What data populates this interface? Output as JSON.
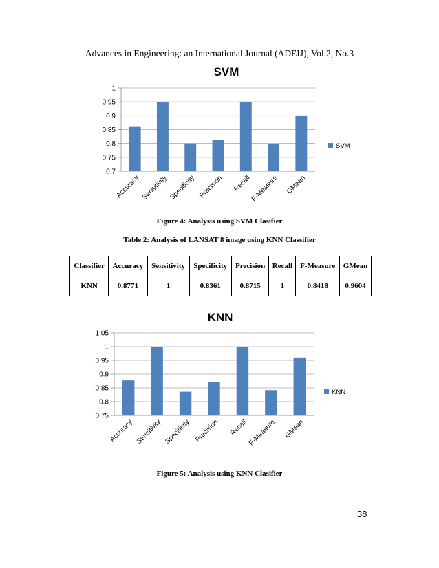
{
  "header": "Advances in Engineering: an International Journal (ADEIJ), Vol.2, No.3",
  "figure4_caption": "Figure 4: Analysis using SVM Clasifier",
  "table_caption": "Table 2: Analysis of LANSAT 8 image using KNN Classifier",
  "table": {
    "headers": [
      "Classifier",
      "Accuracy",
      "Sensitivity",
      "Specificity",
      "Precision",
      "Recall",
      "F-Measure",
      "GMean"
    ],
    "rows": [
      [
        "KNN",
        "0.8771",
        "1",
        "0.8361",
        "0.8715",
        "1",
        "0.8418",
        "0.9604"
      ]
    ]
  },
  "figure5_caption": "Figure 5: Analysis using KNN Clasifier",
  "page_number": "38",
  "bar_color": "#4f81bd",
  "chart_data": [
    {
      "type": "bar",
      "title": "SVM",
      "categories": [
        "Accuracy",
        "Sensitivity",
        "Specificity",
        "Precision",
        "Recall",
        "F-Measure",
        "GMean"
      ],
      "series": [
        {
          "name": "SVM",
          "values": [
            0.862,
            0.948,
            0.8,
            0.814,
            0.948,
            0.797,
            0.9
          ]
        }
      ],
      "yticks": [
        "0.7",
        "0.75",
        "0.8",
        "0.85",
        "0.9",
        "0.95",
        "1"
      ],
      "ylim": [
        0.7,
        1
      ],
      "grid": true,
      "legend": "right"
    },
    {
      "type": "bar",
      "title": "KNN",
      "categories": [
        "Accuracy",
        "Sensitivity",
        "Specificity",
        "Precision",
        "Recall",
        "F-Measure",
        "GMean"
      ],
      "series": [
        {
          "name": "KNN",
          "values": [
            0.8771,
            1,
            0.8361,
            0.8715,
            1,
            0.8418,
            0.9604
          ]
        }
      ],
      "yticks": [
        "0.75",
        "0.8",
        "0.85",
        "0.9",
        "0.95",
        "1",
        "1.05"
      ],
      "ylim": [
        0.75,
        1.05
      ],
      "grid": true,
      "legend": "right"
    }
  ]
}
